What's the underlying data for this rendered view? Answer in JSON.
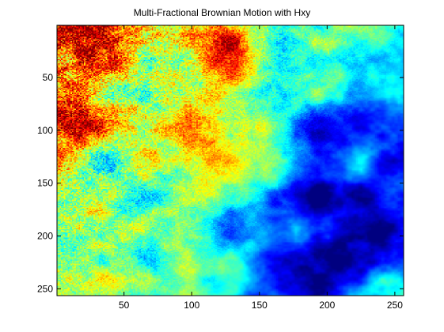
{
  "chart_data": {
    "type": "heatmap",
    "title": "Multi-Fractional Brownian Motion with Hxy",
    "xlabel": "",
    "ylabel": "",
    "grid_size": [
      256,
      256
    ],
    "xlim": [
      0.5,
      256.5
    ],
    "ylim": [
      0.5,
      256.5
    ],
    "y_reversed": true,
    "x_ticks": [
      50,
      100,
      150,
      200,
      250
    ],
    "y_ticks": [
      50,
      100,
      150,
      200,
      250
    ],
    "x_tick_labels": [
      "50",
      "100",
      "150",
      "200",
      "250"
    ],
    "y_tick_labels": [
      "50",
      "100",
      "150",
      "200",
      "250"
    ],
    "colormap": "jet",
    "grid": false,
    "legend": "none",
    "hot_regions": [
      {
        "x": 95,
        "y": 105,
        "v": 0.78
      },
      {
        "x": 30,
        "y": 20,
        "v": 0.85
      },
      {
        "x": 15,
        "y": 95,
        "v": 0.88
      },
      {
        "x": 125,
        "y": 20,
        "v": 0.82
      }
    ]
  }
}
